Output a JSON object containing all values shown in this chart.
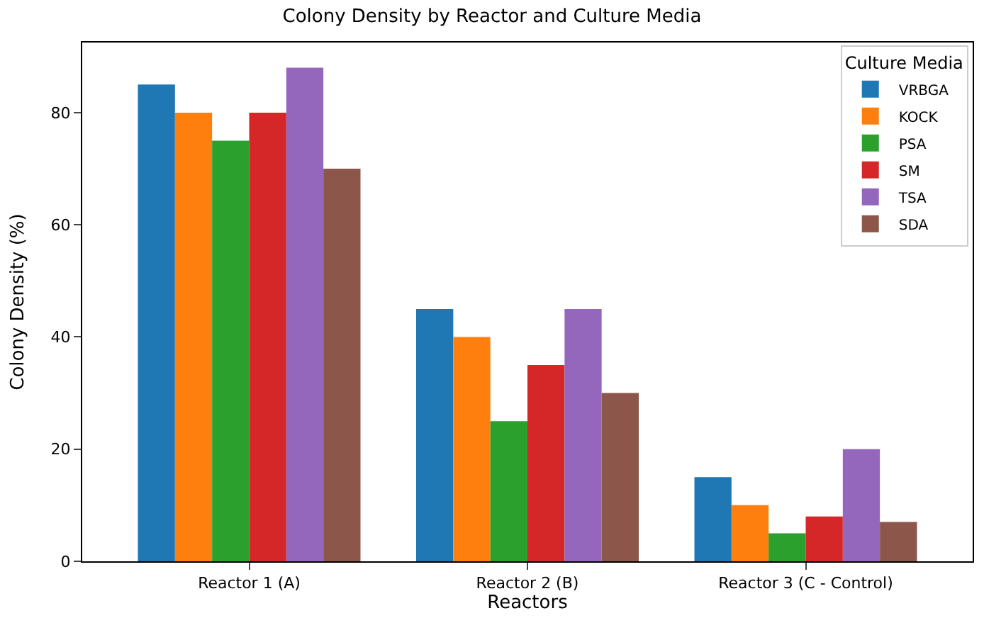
{
  "chart_data": {
    "type": "bar",
    "title": "Colony Density by Reactor and Culture Media",
    "xlabel": "Reactors",
    "ylabel": "Colony Density (%)",
    "legend_title": "Culture Media",
    "categories": [
      "Reactor 1 (A)",
      "Reactor 2 (B)",
      "Reactor 3 (C - Control)"
    ],
    "series": [
      {
        "name": "VRBGA",
        "color": "#1f77b4",
        "values": [
          85,
          45,
          15
        ]
      },
      {
        "name": "KOCK",
        "color": "#ff7f0e",
        "values": [
          80,
          40,
          10
        ]
      },
      {
        "name": "PSA",
        "color": "#2ca02c",
        "values": [
          75,
          25,
          5
        ]
      },
      {
        "name": "SM",
        "color": "#d62728",
        "values": [
          80,
          35,
          8
        ]
      },
      {
        "name": "TSA",
        "color": "#9467bd",
        "values": [
          88,
          45,
          20
        ]
      },
      {
        "name": "SDA",
        "color": "#8c564b",
        "values": [
          70,
          30,
          7
        ]
      }
    ],
    "ylim": [
      0,
      92.5
    ],
    "yticks": [
      0,
      20,
      40,
      60,
      80
    ],
    "legend": "top right"
  }
}
